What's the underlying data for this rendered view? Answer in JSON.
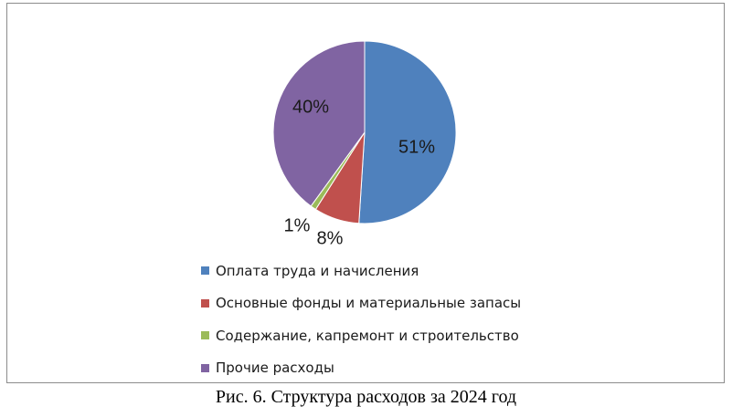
{
  "chart_data": {
    "type": "pie",
    "title": "",
    "slices": [
      {
        "name": "Оплата труда и начисления",
        "value": 51,
        "label": "51%",
        "color": "#4f81bd"
      },
      {
        "name": "Основные фонды и материальные запасы",
        "value": 8,
        "label": "8%",
        "color": "#c0504d"
      },
      {
        "name": "Содержание, капремонт и строительство",
        "value": 1,
        "label": "1%",
        "color": "#9bbb59"
      },
      {
        "name": "Прочие расходы",
        "value": 40,
        "label": "40%",
        "color": "#8064a2"
      }
    ],
    "legend_position": "bottom"
  },
  "caption": "Рис. 6. Структура расходов за 2024 год"
}
